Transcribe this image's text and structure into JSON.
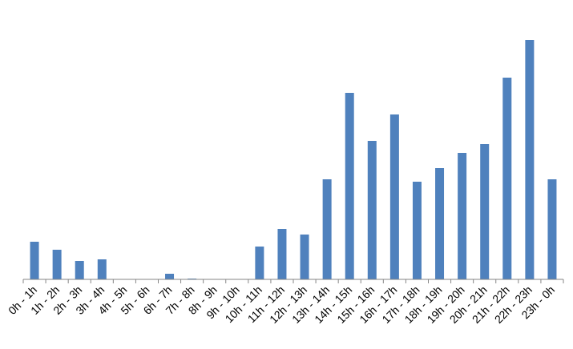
{
  "chart_data": {
    "type": "bar",
    "categories": [
      "0h - 1h",
      "1h - 2h",
      "2h - 3h",
      "3h - 4h",
      "4h - 5h",
      "5h - 6h",
      "6h - 7h",
      "7h - 8h",
      "8h - 9h",
      "9h - 10h",
      "10h - 11h",
      "11h - 12h",
      "12h - 13h",
      "13h - 14h",
      "14h - 15h",
      "15h - 16h",
      "16h - 17h",
      "17h - 18h",
      "18h - 19h",
      "19h - 20h",
      "20h - 21h",
      "21h - 22h",
      "22h - 23h",
      "23h - 0h"
    ],
    "values": [
      47,
      37,
      23,
      25,
      0,
      0,
      7,
      1,
      0,
      0,
      41,
      63,
      56,
      125,
      233,
      173,
      206,
      122,
      139,
      158,
      169,
      252,
      299,
      125
    ],
    "title": "",
    "xlabel": "",
    "ylabel": "",
    "ylim": [
      0,
      320
    ],
    "grid": false,
    "legend": "none",
    "colors": {
      "bar": "#4f81bd",
      "axis": "#868686",
      "label": "#000000"
    }
  }
}
